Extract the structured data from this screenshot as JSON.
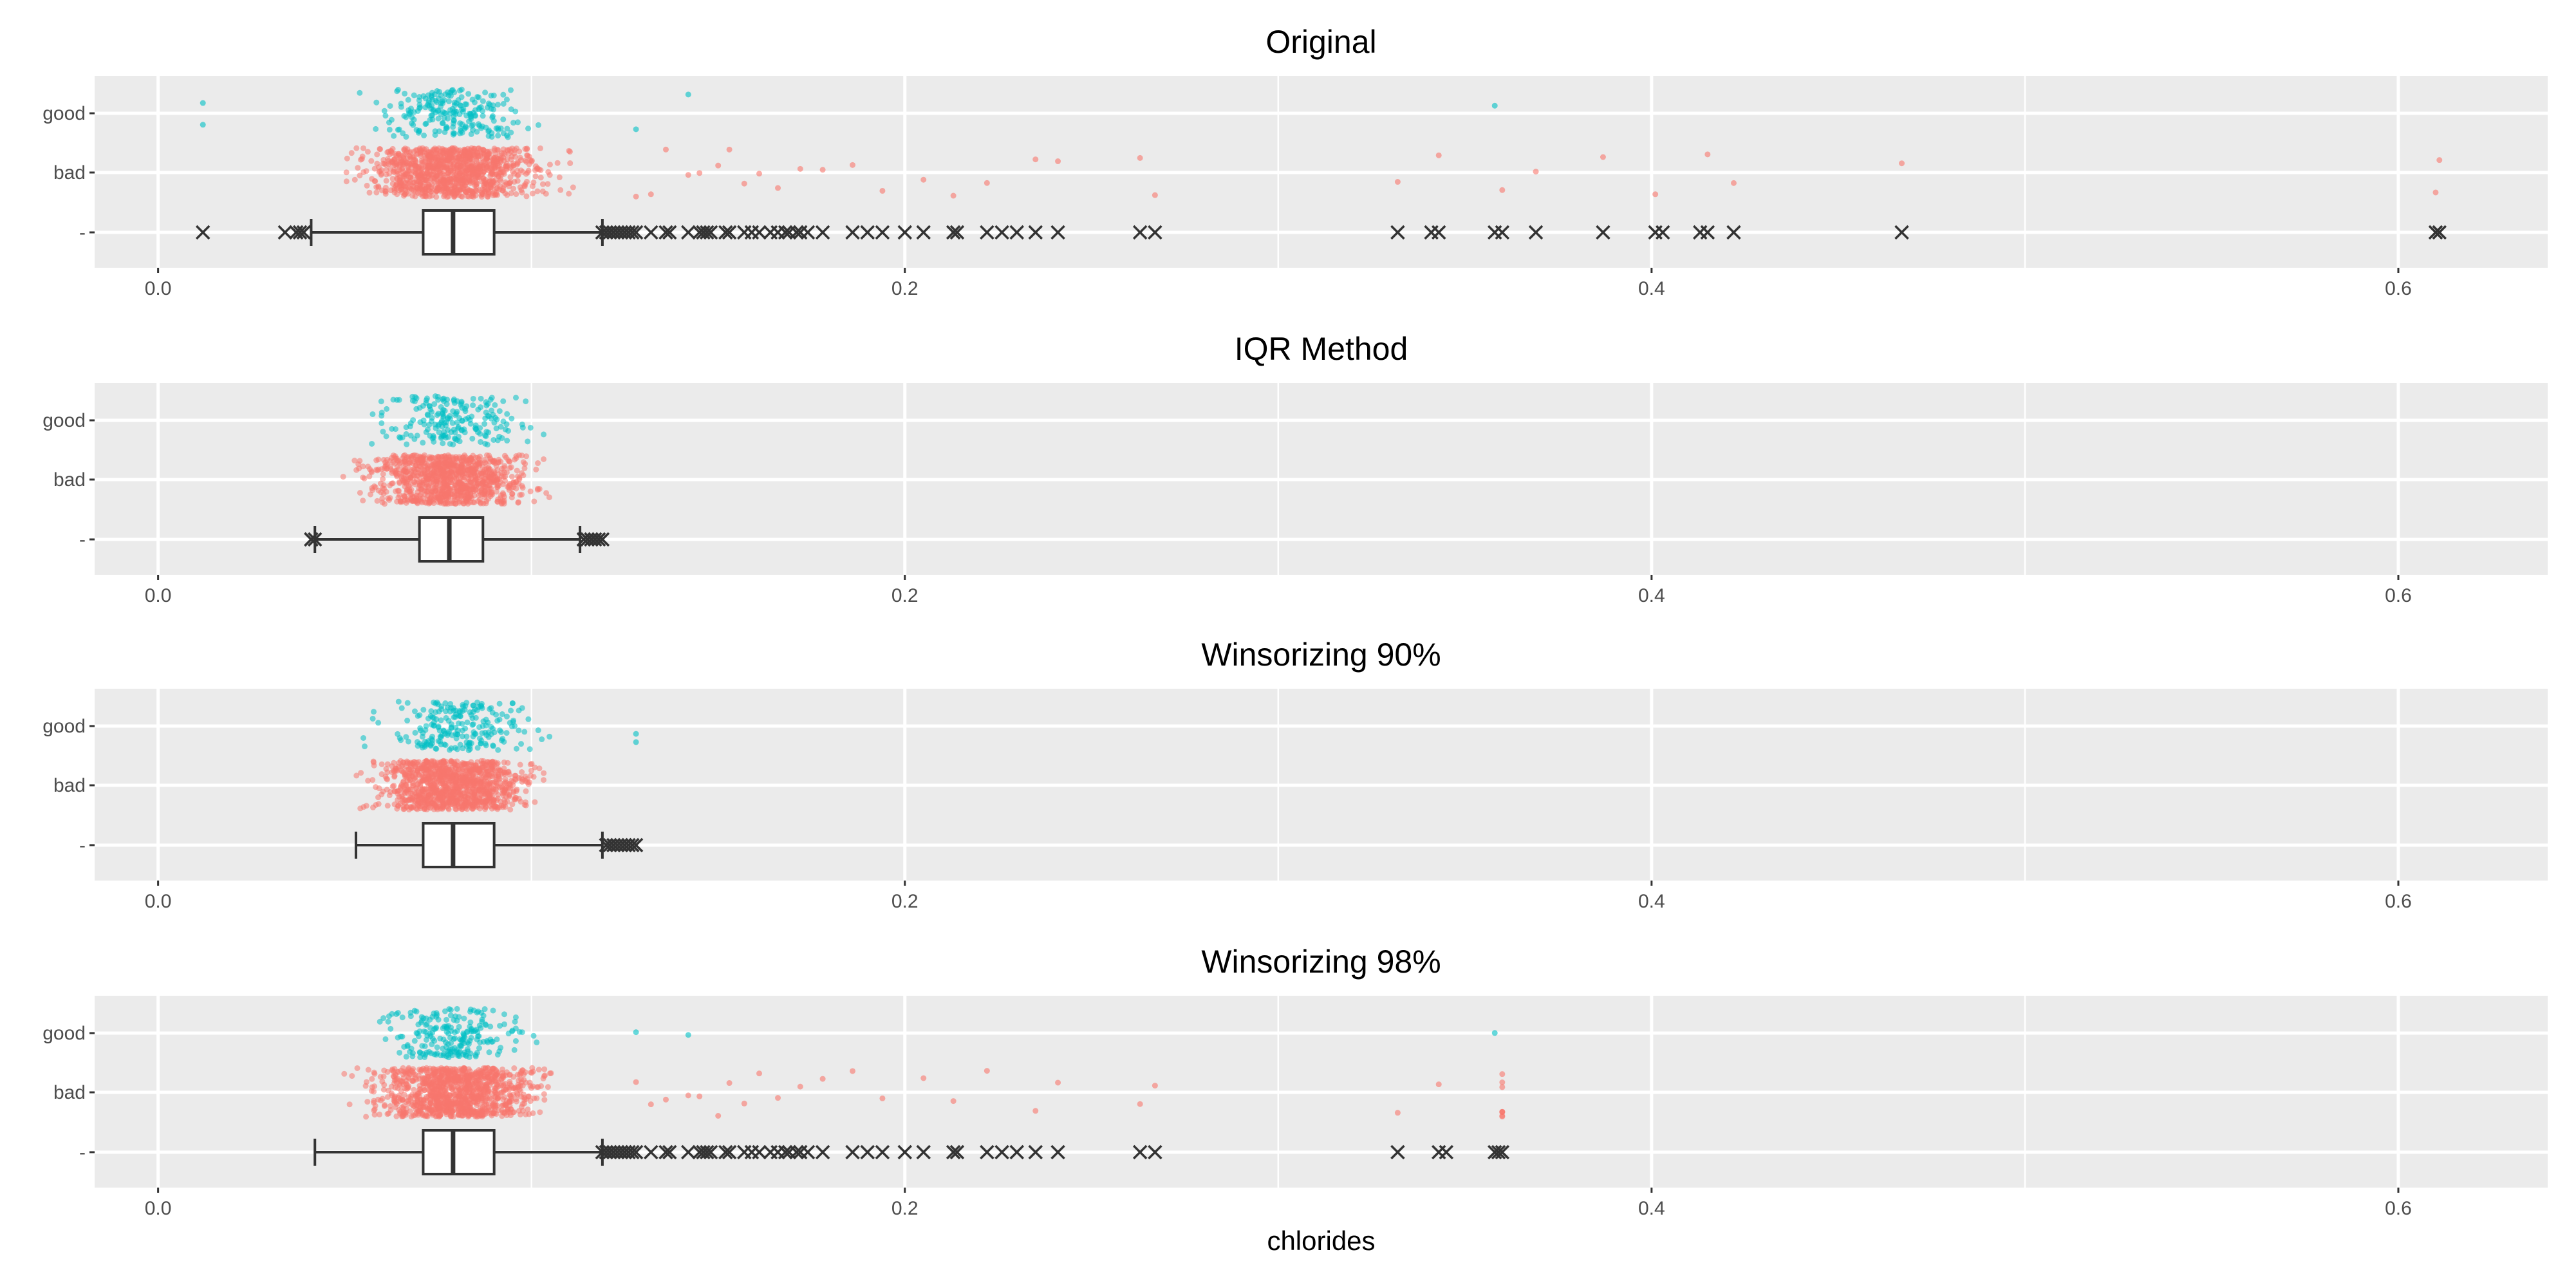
{
  "chart_data": {
    "type": "scatter",
    "subtype": "faceted jitter + boxplot",
    "xlabel": "chlorides",
    "xlim": [
      -0.017,
      0.64
    ],
    "x_ticks": [
      0.0,
      0.2,
      0.4,
      0.6
    ],
    "x_tick_labels": [
      "0.0",
      "0.2",
      "0.4",
      "0.6"
    ],
    "y_categories": [
      "good",
      "bad",
      "-"
    ],
    "colors": {
      "good": "#00BFC4",
      "bad": "#F8766D",
      "box": "#333333",
      "panel": "#EBEBEB"
    },
    "legend": "none",
    "grid": true,
    "panels": [
      {
        "title": "Original",
        "box": {
          "whisker_low": 0.041,
          "q1": 0.071,
          "median": 0.079,
          "q3": 0.09,
          "whisker_high": 0.119
        },
        "outliers": [
          0.012,
          0.034,
          0.037,
          0.038,
          0.039,
          0.119,
          0.12,
          0.121,
          0.122,
          0.123,
          0.124,
          0.125,
          0.126,
          0.127,
          0.128,
          0.132,
          0.136,
          0.137,
          0.142,
          0.145,
          0.146,
          0.147,
          0.148,
          0.152,
          0.153,
          0.157,
          0.159,
          0.161,
          0.164,
          0.166,
          0.168,
          0.169,
          0.171,
          0.172,
          0.174,
          0.178,
          0.186,
          0.19,
          0.194,
          0.2,
          0.205,
          0.213,
          0.214,
          0.222,
          0.226,
          0.23,
          0.235,
          0.241,
          0.263,
          0.267,
          0.332,
          0.341,
          0.343,
          0.358,
          0.36,
          0.369,
          0.387,
          0.401,
          0.403,
          0.413,
          0.415,
          0.422,
          0.467,
          0.61,
          0.611
        ],
        "good": {
          "range": [
            0.044,
            0.12
          ],
          "extra": [
            0.012,
            0.012,
            0.128,
            0.142,
            0.358
          ],
          "n": 217
        },
        "bad": {
          "range": [
            0.034,
            0.125
          ],
          "extra": [
            0.128,
            0.132,
            0.136,
            0.142,
            0.145,
            0.15,
            0.153,
            0.157,
            0.161,
            0.166,
            0.172,
            0.178,
            0.186,
            0.194,
            0.205,
            0.213,
            0.222,
            0.235,
            0.241,
            0.263,
            0.267,
            0.332,
            0.343,
            0.36,
            0.369,
            0.387,
            0.401,
            0.415,
            0.422,
            0.467,
            0.61,
            0.611
          ],
          "n": 1100
        }
      },
      {
        "title": "IQR Method",
        "box": {
          "whisker_low": 0.042,
          "q1": 0.07,
          "median": 0.078,
          "q3": 0.087,
          "whisker_high": 0.113
        },
        "outliers": [
          0.041,
          0.041,
          0.042,
          0.114,
          0.115,
          0.116,
          0.117,
          0.118,
          0.119
        ],
        "good": {
          "range": [
            0.041,
            0.115
          ],
          "extra": [],
          "n": 200
        },
        "bad": {
          "range": [
            0.041,
            0.119
          ],
          "extra": [],
          "n": 1000
        }
      },
      {
        "title": "Winsorizing 90%",
        "box": {
          "whisker_low": 0.053,
          "q1": 0.071,
          "median": 0.079,
          "q3": 0.09,
          "whisker_high": 0.119
        },
        "outliers": [
          0.12,
          0.121,
          0.122,
          0.123,
          0.124,
          0.125,
          0.126,
          0.127,
          0.128
        ],
        "good": {
          "range": [
            0.053,
            0.128
          ],
          "extra": [
            0.128,
            0.128
          ],
          "n": 217
        },
        "bad": {
          "range": [
            0.053,
            0.128
          ],
          "extra": [],
          "n": 1100
        }
      },
      {
        "title": "Winsorizing 98%",
        "box": {
          "whisker_low": 0.042,
          "q1": 0.071,
          "median": 0.079,
          "q3": 0.09,
          "whisker_high": 0.119
        },
        "outliers": [
          0.119,
          0.12,
          0.121,
          0.122,
          0.123,
          0.124,
          0.125,
          0.126,
          0.127,
          0.128,
          0.132,
          0.136,
          0.137,
          0.142,
          0.145,
          0.146,
          0.147,
          0.148,
          0.152,
          0.153,
          0.157,
          0.159,
          0.161,
          0.164,
          0.166,
          0.168,
          0.169,
          0.171,
          0.172,
          0.174,
          0.178,
          0.186,
          0.19,
          0.194,
          0.2,
          0.205,
          0.213,
          0.214,
          0.222,
          0.226,
          0.23,
          0.235,
          0.241,
          0.263,
          0.267,
          0.332,
          0.343,
          0.345,
          0.358,
          0.359,
          0.36
        ],
        "good": {
          "range": [
            0.042,
            0.11
          ],
          "extra": [
            0.128,
            0.142,
            0.358
          ],
          "n": 217
        },
        "bad": {
          "range": [
            0.042,
            0.125
          ],
          "extra": [
            0.128,
            0.132,
            0.136,
            0.142,
            0.145,
            0.15,
            0.153,
            0.157,
            0.161,
            0.166,
            0.172,
            0.178,
            0.186,
            0.194,
            0.205,
            0.213,
            0.222,
            0.235,
            0.241,
            0.263,
            0.267,
            0.332,
            0.343,
            0.36,
            0.36,
            0.36,
            0.36,
            0.36,
            0.36,
            0.36,
            0.36
          ],
          "n": 1100
        }
      }
    ]
  }
}
